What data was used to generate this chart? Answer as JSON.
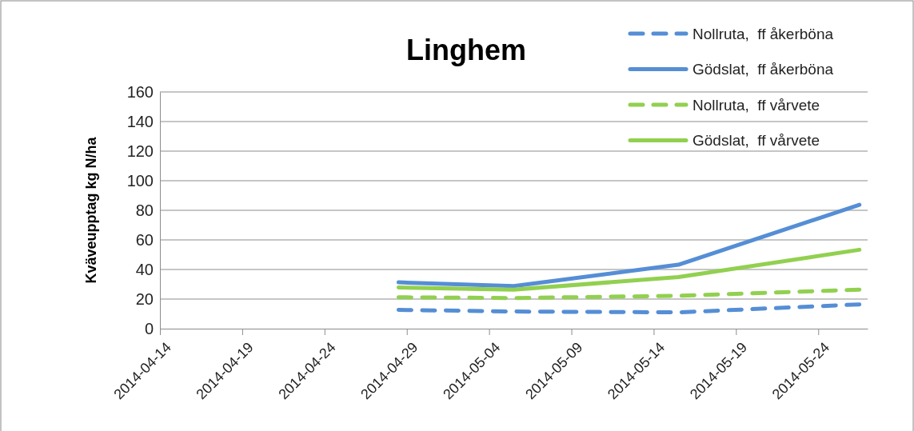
{
  "chart_data": {
    "type": "line",
    "title": "Linghem",
    "ylabel": "Kväveupptag kg N/ha",
    "x": [
      "2014-04-28T12:00",
      "2014-05-05T12:00",
      "2014-05-15T12:00",
      "2014-05-26T12:00"
    ],
    "series": [
      {
        "name": "Nollruta,  ff åkerböna",
        "color": "#558ed5",
        "line_style": "dashed",
        "values": [
          12.7,
          11.6,
          11.0,
          16.4
        ]
      },
      {
        "name": "Gödslat,  ff åkerböna",
        "color": "#558ed5",
        "line_style": "solid",
        "values": [
          31.3,
          28.8,
          43.2,
          83.7
        ]
      },
      {
        "name": "Nollruta,  ff vårvete",
        "color": "#92d050",
        "line_style": "dashed",
        "values": [
          21.2,
          20.7,
          22.2,
          26.4
        ]
      },
      {
        "name": "Gödslat,  ff vårvete",
        "color": "#92d050",
        "line_style": "solid",
        "values": [
          27.8,
          26.4,
          34.9,
          53.3
        ]
      }
    ],
    "xlim": [
      "2014-04-14",
      "2014-05-27"
    ],
    "xticks": [
      "2014-04-14",
      "2014-04-19",
      "2014-04-24",
      "2014-04-29",
      "2014-05-04",
      "2014-05-09",
      "2014-05-14",
      "2014-05-19",
      "2014-05-24"
    ],
    "ylim": [
      0,
      160
    ],
    "yticks": [
      0,
      20,
      40,
      60,
      80,
      100,
      120,
      140,
      160
    ],
    "grid": "y",
    "legend": "top right",
    "marker": "none"
  }
}
